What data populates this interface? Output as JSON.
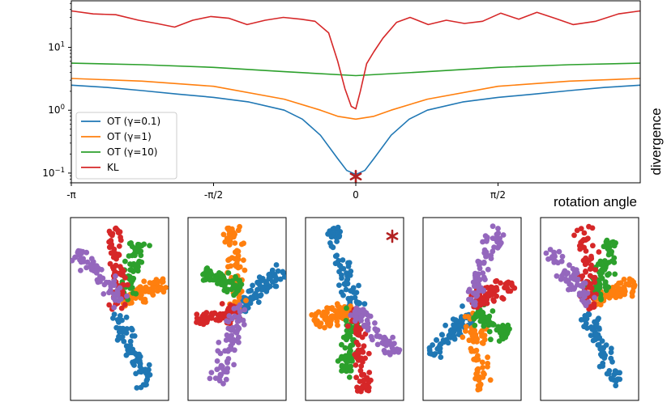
{
  "chart_data": [
    {
      "type": "line",
      "xlabel": "rotation angle",
      "ylabel": "divergence",
      "yscale": "log",
      "xlim": [
        -3.1416,
        3.1416
      ],
      "ylim": [
        0.07,
        55
      ],
      "x_ticks": [
        {
          "value": -3.1416,
          "label": "-π"
        },
        {
          "value": -1.5708,
          "label": "-π/2"
        },
        {
          "value": 0,
          "label": "0"
        },
        {
          "value": 1.5708,
          "label": "π/2"
        }
      ],
      "y_ticks": [
        {
          "value": 0.1,
          "base": "10",
          "exp": "−1"
        },
        {
          "value": 1,
          "base": "10",
          "exp": "0"
        },
        {
          "value": 10,
          "base": "10",
          "exp": "1"
        }
      ],
      "legend": "lower-left",
      "grid": false,
      "series": [
        {
          "name": "OT (γ=0.1)",
          "color": "#1f77b4",
          "x": [
            -3.14,
            -2.75,
            -2.36,
            -1.96,
            -1.57,
            -1.18,
            -0.79,
            -0.59,
            -0.39,
            -0.2,
            -0.1,
            0,
            0.1,
            0.2,
            0.39,
            0.59,
            0.79,
            1.18,
            1.57,
            1.96,
            2.36,
            2.75,
            3.14
          ],
          "y": [
            2.5,
            2.3,
            2.05,
            1.8,
            1.6,
            1.35,
            1.0,
            0.72,
            0.4,
            0.17,
            0.11,
            0.095,
            0.11,
            0.17,
            0.4,
            0.72,
            1.0,
            1.35,
            1.6,
            1.8,
            2.05,
            2.3,
            2.5
          ]
        },
        {
          "name": "OT (γ=1)",
          "color": "#ff7f0e",
          "x": [
            -3.14,
            -2.36,
            -1.57,
            -0.79,
            -0.39,
            -0.2,
            0,
            0.2,
            0.39,
            0.79,
            1.57,
            2.36,
            3.14
          ],
          "y": [
            3.2,
            2.9,
            2.4,
            1.5,
            1.0,
            0.8,
            0.72,
            0.8,
            1.0,
            1.5,
            2.4,
            2.9,
            3.2
          ]
        },
        {
          "name": "OT (γ=10)",
          "color": "#2ca02c",
          "x": [
            -3.14,
            -2.36,
            -1.57,
            -0.79,
            0,
            0.79,
            1.57,
            2.36,
            3.14
          ],
          "y": [
            5.6,
            5.3,
            4.8,
            4.1,
            3.55,
            4.1,
            4.8,
            5.3,
            5.6
          ]
        },
        {
          "name": "KL",
          "color": "#d62728",
          "x": [
            -3.14,
            -2.9,
            -2.65,
            -2.4,
            -2.2,
            -2.0,
            -1.8,
            -1.6,
            -1.4,
            -1.2,
            -1.0,
            -0.8,
            -0.6,
            -0.45,
            -0.3,
            -0.2,
            -0.12,
            -0.05,
            0.0,
            0.05,
            0.12,
            0.2,
            0.3,
            0.45,
            0.6,
            0.8,
            1.0,
            1.2,
            1.4,
            1.6,
            1.8,
            2.0,
            2.2,
            2.4,
            2.65,
            2.9,
            3.14
          ],
          "y": [
            38,
            34,
            33,
            27,
            24,
            21,
            27,
            31,
            29,
            23,
            27,
            30,
            28,
            26,
            17,
            6,
            2.2,
            1.15,
            1.05,
            2.0,
            5.5,
            8.5,
            14,
            25,
            30,
            23,
            27,
            24,
            26,
            35,
            28,
            36,
            29,
            23,
            26,
            34,
            38
          ]
        }
      ],
      "marker": {
        "x": 0,
        "y": 0.088,
        "symbol": "*",
        "color": "#b22222"
      }
    },
    {
      "type": "scatter",
      "panel_count": 5,
      "colors": [
        "#1f77b4",
        "#ff7f0e",
        "#2ca02c",
        "#d62728",
        "#9467bd"
      ],
      "highlighted_panel_index": 2,
      "panels": [
        {
          "arms": [
            {
              "color": "#1f77b4",
              "from": [
                0.48,
                0.52
              ],
              "to": [
                0.78,
                0.92
              ]
            },
            {
              "color": "#ff7f0e",
              "from": [
                0.52,
                0.45
              ],
              "to": [
                0.96,
                0.36
              ]
            },
            {
              "color": "#2ca02c",
              "from": [
                0.55,
                0.45
              ],
              "to": [
                0.72,
                0.13
              ]
            },
            {
              "color": "#d62728",
              "from": [
                0.5,
                0.5
              ],
              "to": [
                0.45,
                0.05
              ]
            },
            {
              "color": "#9467bd",
              "from": [
                0.52,
                0.46
              ],
              "to": [
                0.08,
                0.18
              ]
            }
          ]
        },
        {
          "arms": [
            {
              "color": "#1f77b4",
              "from": [
                0.55,
                0.5
              ],
              "to": [
                0.95,
                0.28
              ]
            },
            {
              "color": "#ff7f0e",
              "from": [
                0.5,
                0.5
              ],
              "to": [
                0.45,
                0.05
              ]
            },
            {
              "color": "#2ca02c",
              "from": [
                0.52,
                0.4
              ],
              "to": [
                0.15,
                0.3
              ]
            },
            {
              "color": "#d62728",
              "from": [
                0.55,
                0.52
              ],
              "to": [
                0.08,
                0.55
              ]
            },
            {
              "color": "#9467bd",
              "from": [
                0.55,
                0.48
              ],
              "to": [
                0.3,
                0.9
              ]
            }
          ]
        },
        {
          "arms": [
            {
              "color": "#1f77b4",
              "from": [
                0.5,
                0.5
              ],
              "to": [
                0.28,
                0.05
              ]
            },
            {
              "color": "#ff7f0e",
              "from": [
                0.5,
                0.5
              ],
              "to": [
                0.08,
                0.57
              ]
            },
            {
              "color": "#2ca02c",
              "from": [
                0.5,
                0.5
              ],
              "to": [
                0.38,
                0.88
              ]
            },
            {
              "color": "#d62728",
              "from": [
                0.5,
                0.5
              ],
              "to": [
                0.6,
                0.95
              ]
            },
            {
              "color": "#9467bd",
              "from": [
                0.5,
                0.5
              ],
              "to": [
                0.92,
                0.75
              ]
            }
          ],
          "marker": {
            "symbol": "*",
            "color": "#b22222"
          }
        },
        {
          "arms": [
            {
              "color": "#1f77b4",
              "from": [
                0.48,
                0.52
              ],
              "to": [
                0.08,
                0.75
              ]
            },
            {
              "color": "#ff7f0e",
              "from": [
                0.5,
                0.52
              ],
              "to": [
                0.62,
                0.95
              ]
            },
            {
              "color": "#2ca02c",
              "from": [
                0.55,
                0.52
              ],
              "to": [
                0.85,
                0.65
              ]
            },
            {
              "color": "#d62728",
              "from": [
                0.5,
                0.48
              ],
              "to": [
                0.9,
                0.35
              ]
            },
            {
              "color": "#9467bd",
              "from": [
                0.48,
                0.48
              ],
              "to": [
                0.78,
                0.05
              ]
            }
          ]
        },
        {
          "arms": [
            {
              "color": "#1f77b4",
              "from": [
                0.48,
                0.52
              ],
              "to": [
                0.78,
                0.92
              ]
            },
            {
              "color": "#ff7f0e",
              "from": [
                0.52,
                0.45
              ],
              "to": [
                0.96,
                0.36
              ]
            },
            {
              "color": "#2ca02c",
              "from": [
                0.55,
                0.45
              ],
              "to": [
                0.72,
                0.13
              ]
            },
            {
              "color": "#d62728",
              "from": [
                0.5,
                0.5
              ],
              "to": [
                0.45,
                0.05
              ]
            },
            {
              "color": "#9467bd",
              "from": [
                0.52,
                0.46
              ],
              "to": [
                0.08,
                0.18
              ]
            }
          ]
        }
      ]
    }
  ]
}
